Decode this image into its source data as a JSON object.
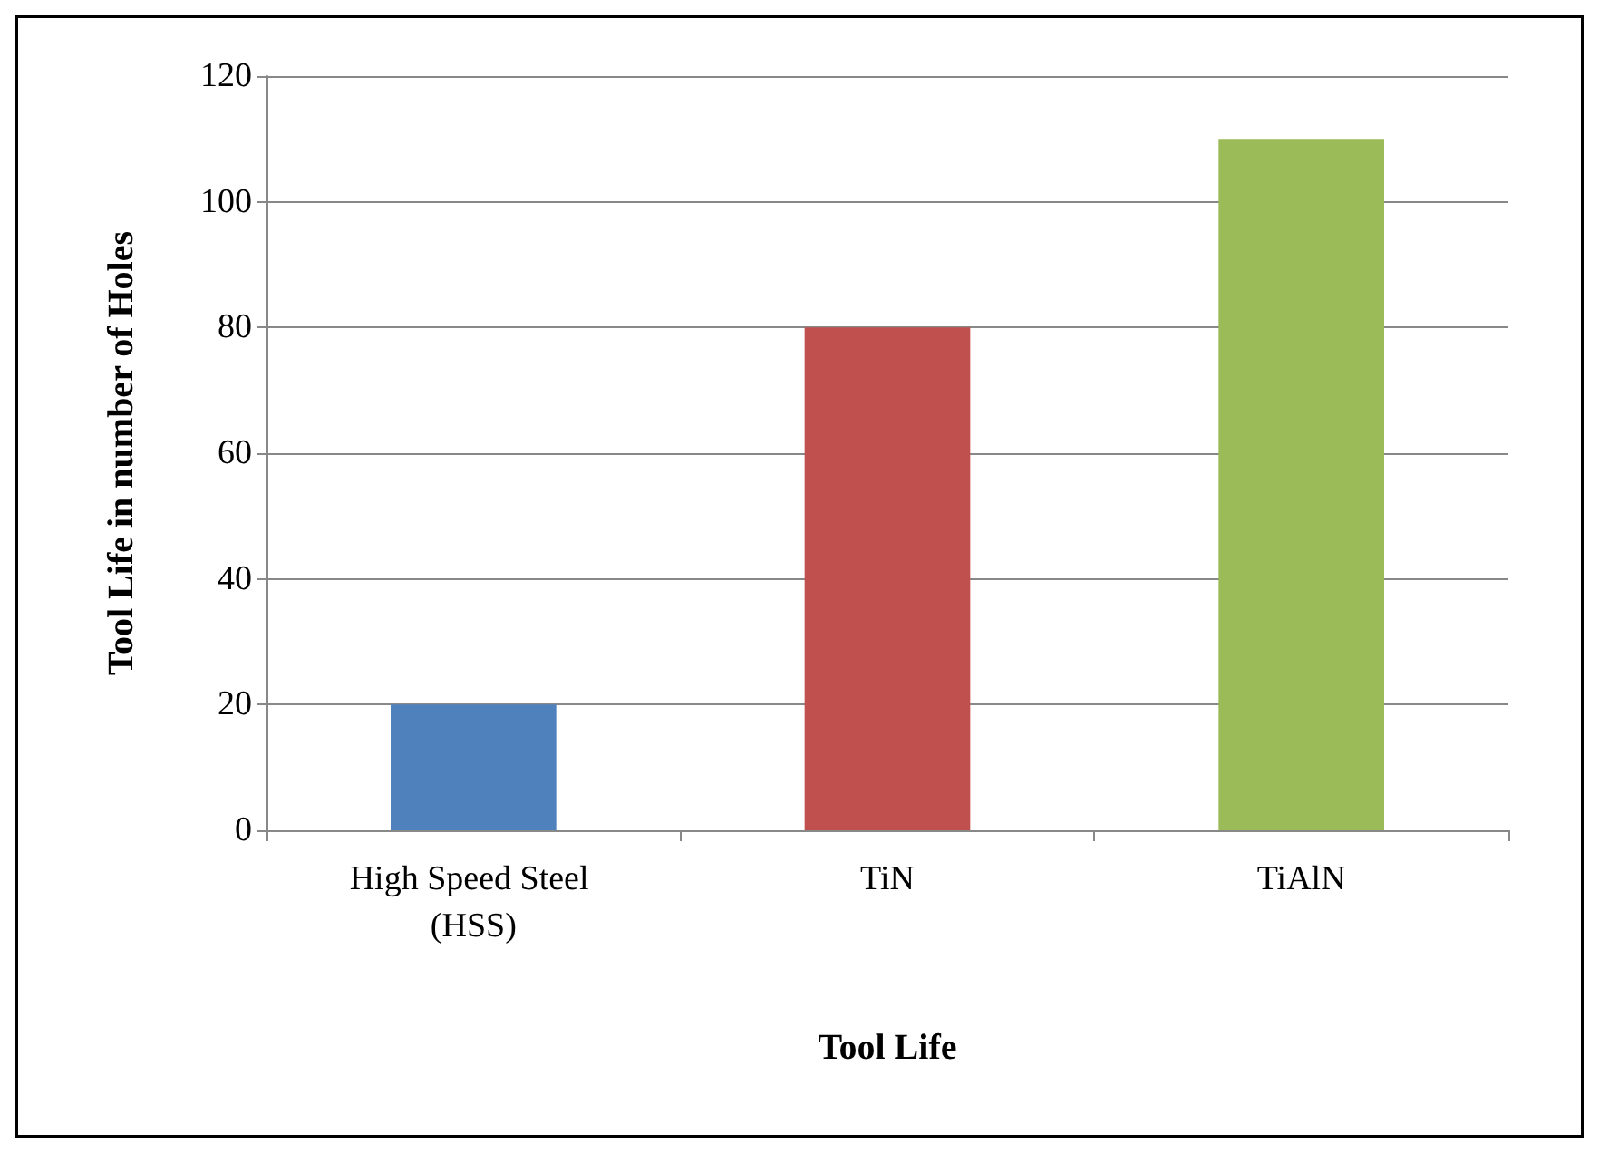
{
  "chart_data": {
    "type": "bar",
    "xlabel": "Tool Life",
    "ylabel": "Tool Life in number of Holes",
    "categories": [
      "High Speed Steel (HSS)",
      "TiN",
      "TiAlN"
    ],
    "values": [
      20,
      80,
      110
    ],
    "colors": [
      "#4f81bd",
      "#c0504d",
      "#9bbb59"
    ],
    "ylim": [
      0,
      120
    ],
    "yticks": [
      0,
      20,
      40,
      60,
      80,
      100,
      120
    ],
    "grid": "y"
  }
}
